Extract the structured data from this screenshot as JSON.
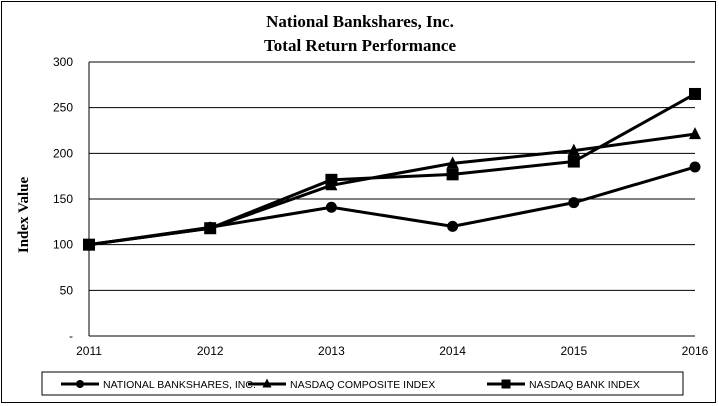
{
  "chart_data": {
    "type": "line",
    "title": [
      "National Bankshares, Inc.",
      "Total Return Performance"
    ],
    "ylabel": "Index Value",
    "xlabel": "",
    "x": [
      "2011",
      "2012",
      "2013",
      "2014",
      "2015",
      "2016"
    ],
    "ylim": [
      0,
      300
    ],
    "yticks": [
      0,
      50,
      100,
      150,
      200,
      250,
      300
    ],
    "ytick_labels": [
      "-",
      "50",
      "100",
      "150",
      "200",
      "250",
      "300"
    ],
    "grid": "horizontal",
    "legend_position": "bottom",
    "series": [
      {
        "name": "NATIONAL BANKSHARES, INC.",
        "marker": "circle",
        "values": [
          100,
          119,
          141,
          120,
          146,
          185
        ]
      },
      {
        "name": "NASDAQ COMPOSITE INDEX",
        "marker": "triangle",
        "values": [
          100,
          118,
          165,
          189,
          203,
          221
        ]
      },
      {
        "name": "NASDAQ BANK INDEX",
        "marker": "square",
        "values": [
          100,
          118,
          171,
          177,
          191,
          265
        ]
      }
    ],
    "line_color": "#000000"
  }
}
